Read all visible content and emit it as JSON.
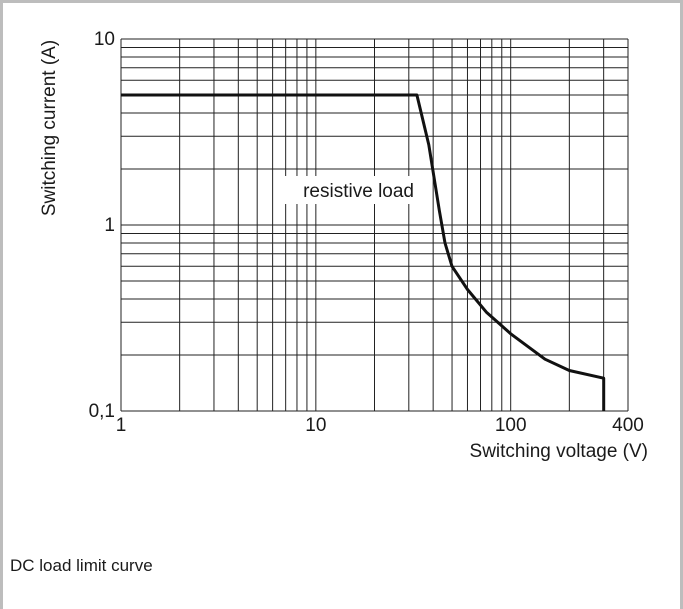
{
  "caption": "DC load limit curve",
  "chart_data": {
    "type": "line",
    "xscale": "log",
    "yscale": "log",
    "xlim": [
      1,
      400
    ],
    "ylim": [
      0.1,
      10
    ],
    "grid": true,
    "xlabel": "Switching voltage (V)",
    "ylabel": "Switching current (A)",
    "x_ticks": [
      {
        "value": 1,
        "label": "1"
      },
      {
        "value": 10,
        "label": "10"
      },
      {
        "value": 100,
        "label": "100"
      },
      {
        "value": 400,
        "label": "400"
      }
    ],
    "y_ticks": [
      {
        "value": 0.1,
        "label": "0,1"
      },
      {
        "value": 1,
        "label": "1"
      },
      {
        "value": 10,
        "label": "10"
      }
    ],
    "series": [
      {
        "x": [
          1,
          33,
          38,
          43,
          46,
          50,
          60,
          75,
          100,
          150,
          200,
          300,
          300
        ],
        "y": [
          5,
          5,
          2.7,
          1.2,
          0.8,
          0.6,
          0.45,
          0.34,
          0.26,
          0.19,
          0.165,
          0.15,
          0.1
        ]
      }
    ],
    "annotations": [
      {
        "text": "resistive load",
        "x": 40,
        "y": 2
      }
    ],
    "line_color": "#111111",
    "grid_color": "#222222"
  }
}
